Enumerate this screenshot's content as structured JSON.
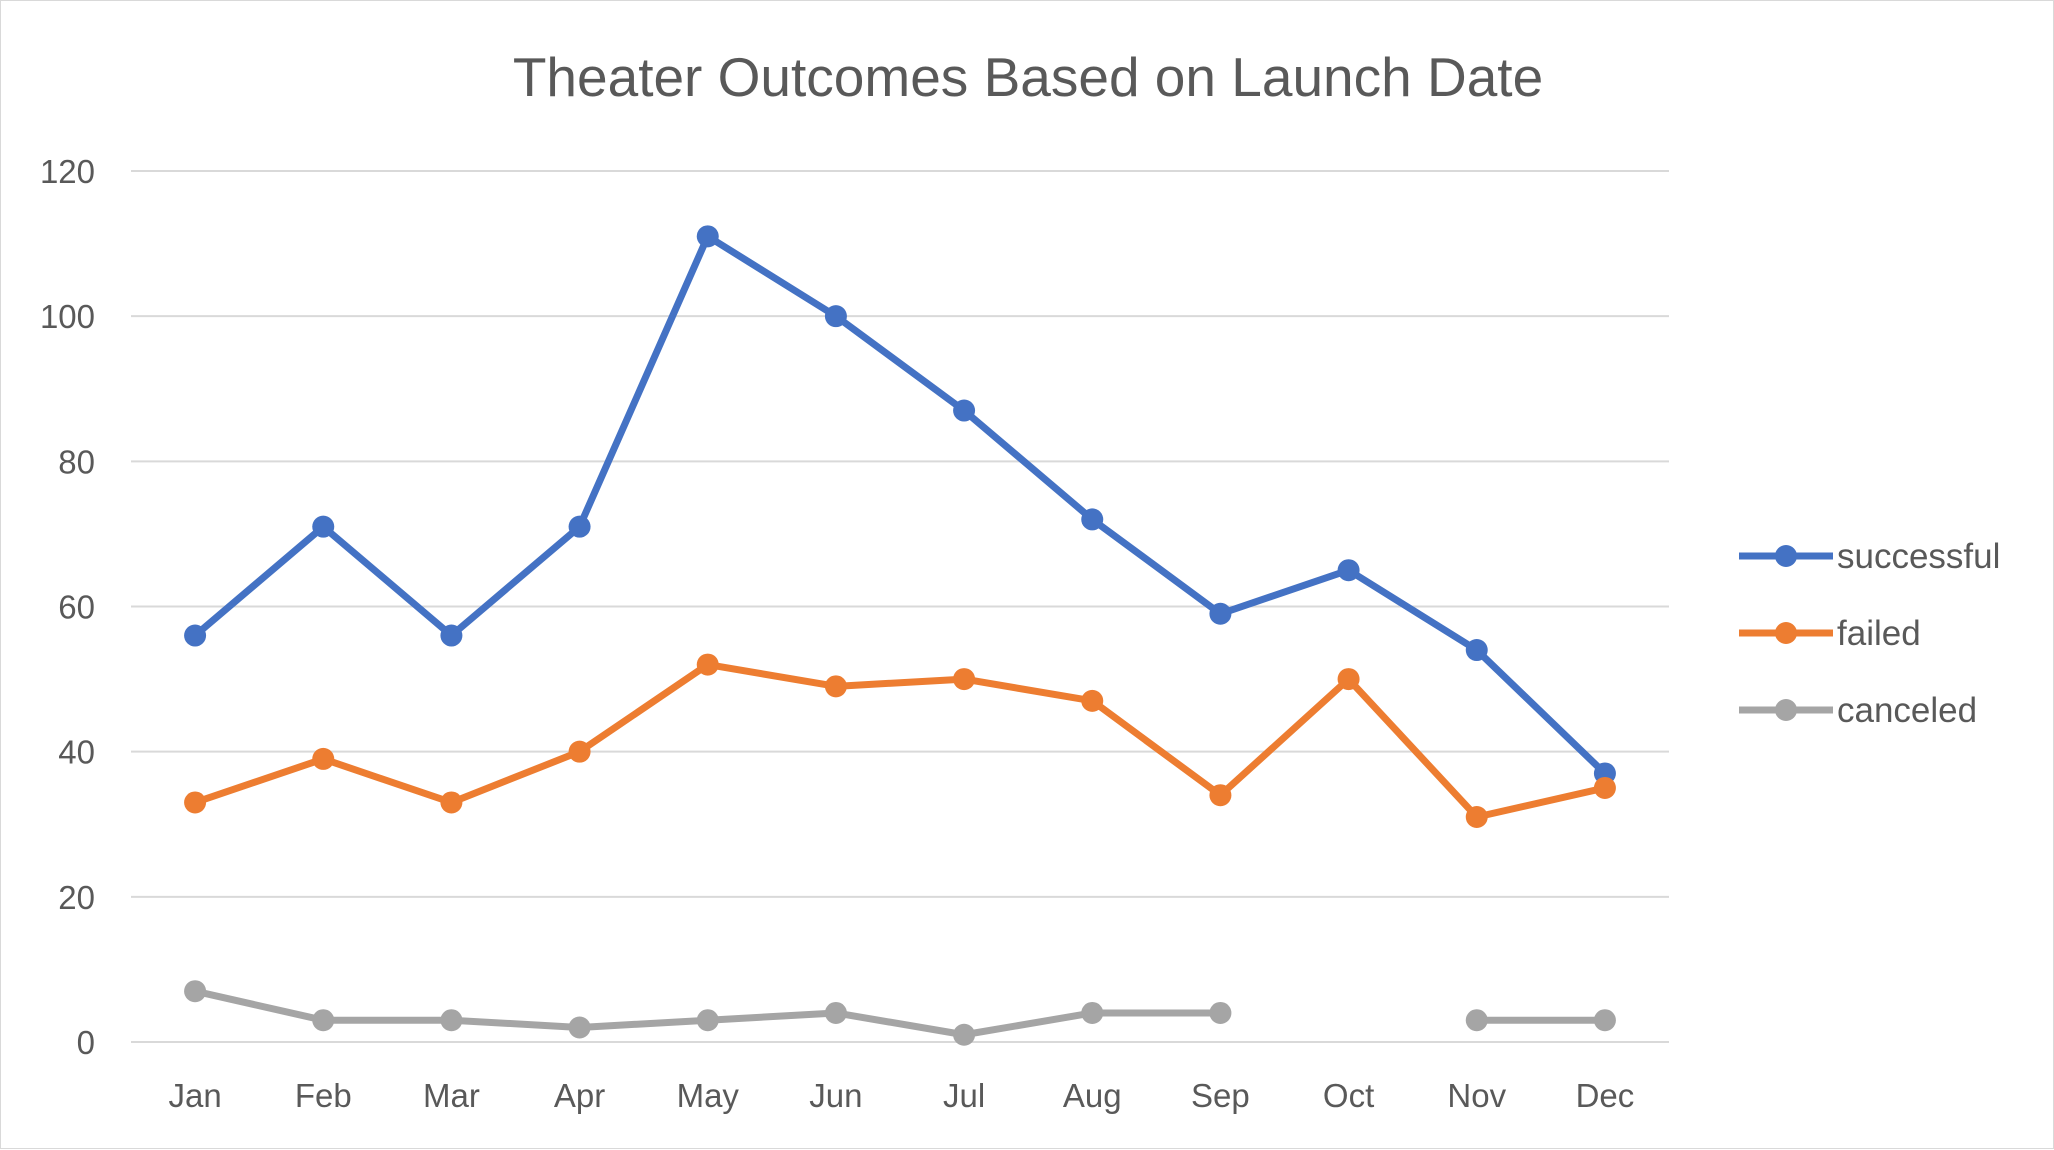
{
  "chart_data": {
    "type": "line",
    "title": "Theater Outcomes Based on Launch Date",
    "xlabel": "",
    "ylabel": "",
    "categories": [
      "Jan",
      "Feb",
      "Mar",
      "Apr",
      "May",
      "Jun",
      "Jul",
      "Aug",
      "Sep",
      "Oct",
      "Nov",
      "Dec"
    ],
    "ylim": [
      0,
      120
    ],
    "yticks": [
      "0",
      "20",
      "40",
      "60",
      "80",
      "100",
      "120"
    ],
    "grid": true,
    "legend_position": "right",
    "series": [
      {
        "name": "successful",
        "color": "#4472c4",
        "values": [
          56,
          71,
          56,
          71,
          111,
          100,
          87,
          72,
          59,
          65,
          54,
          37
        ]
      },
      {
        "name": "failed",
        "color": "#ed7d31",
        "values": [
          33,
          39,
          33,
          40,
          52,
          49,
          50,
          47,
          34,
          50,
          31,
          35
        ]
      },
      {
        "name": "canceled",
        "color": "#a5a5a5",
        "values": [
          7,
          3,
          3,
          2,
          3,
          4,
          1,
          4,
          4,
          null,
          3,
          3
        ]
      }
    ]
  }
}
